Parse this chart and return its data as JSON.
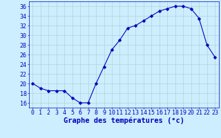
{
  "hours": [
    0,
    1,
    2,
    3,
    4,
    5,
    6,
    7,
    8,
    9,
    10,
    11,
    12,
    13,
    14,
    15,
    16,
    17,
    18,
    19,
    20,
    21,
    22,
    23
  ],
  "temps": [
    20,
    19,
    18.5,
    18.5,
    18.5,
    17,
    16,
    16,
    20,
    23.5,
    27,
    29,
    31.5,
    32,
    33,
    34,
    35,
    35.5,
    36,
    36,
    35.5,
    33.5,
    28,
    25.5
  ],
  "line_color": "#0000bb",
  "marker": "D",
  "marker_size": 2.5,
  "bg_color": "#cceeff",
  "grid_color": "#aacccc",
  "xlabel": "Graphe des températures (°c)",
  "xlabel_color": "#0000bb",
  "xlabel_fontsize": 7.5,
  "tick_color": "#0000bb",
  "tick_fontsize": 6,
  "ytick_step": 2,
  "ylim": [
    15,
    37
  ],
  "xlim": [
    -0.5,
    23.5
  ],
  "xticks": [
    0,
    1,
    2,
    3,
    4,
    5,
    6,
    7,
    8,
    9,
    10,
    11,
    12,
    13,
    14,
    15,
    16,
    17,
    18,
    19,
    20,
    21,
    22,
    23
  ],
  "yticks": [
    16,
    18,
    20,
    22,
    24,
    26,
    28,
    30,
    32,
    34,
    36
  ]
}
